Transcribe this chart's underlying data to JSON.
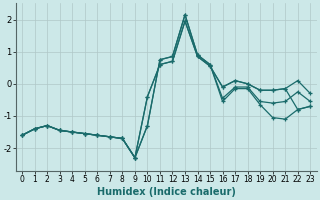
{
  "xlabel": "Humidex (Indice chaleur)",
  "bg_color": "#cce8e8",
  "grid_color": "#b0c8c8",
  "line_color": "#1a6b6b",
  "xlim": [
    -0.5,
    23.5
  ],
  "ylim": [
    -2.7,
    2.5
  ],
  "xticks": [
    0,
    1,
    2,
    3,
    4,
    5,
    6,
    7,
    8,
    9,
    10,
    11,
    12,
    13,
    14,
    15,
    16,
    17,
    18,
    19,
    20,
    21,
    22,
    23
  ],
  "yticks": [
    -2,
    -1,
    0,
    1,
    2
  ],
  "lines": [
    {
      "x": [
        0,
        1,
        2,
        3,
        4,
        5,
        6,
        7,
        8,
        9,
        10,
        11,
        12,
        13,
        14,
        15,
        16,
        17,
        18,
        19,
        20,
        21,
        22,
        23
      ],
      "y": [
        -1.6,
        -1.4,
        -1.3,
        -1.45,
        -1.5,
        -1.55,
        -1.6,
        -1.65,
        -1.7,
        -2.3,
        -1.3,
        0.75,
        0.85,
        2.15,
        0.9,
        0.6,
        -0.55,
        -0.15,
        -0.15,
        -0.65,
        -1.05,
        -1.1,
        -0.8,
        -0.7
      ]
    },
    {
      "x": [
        0,
        1,
        2,
        3,
        4,
        5,
        6,
        7,
        8,
        9,
        10,
        11,
        12,
        13,
        14,
        15,
        16,
        17,
        18,
        19,
        20,
        21,
        22,
        23
      ],
      "y": [
        -1.6,
        -1.4,
        -1.3,
        -1.45,
        -1.5,
        -1.55,
        -1.6,
        -1.65,
        -1.7,
        -2.3,
        -1.3,
        0.75,
        0.85,
        2.15,
        0.9,
        0.6,
        -0.45,
        -0.1,
        -0.1,
        -0.55,
        -0.6,
        -0.55,
        -0.25,
        -0.55
      ]
    },
    {
      "x": [
        0,
        1,
        2,
        3,
        4,
        5,
        6,
        7,
        8,
        9,
        10,
        11,
        12,
        13,
        14,
        15,
        16,
        17,
        18,
        19,
        20,
        21,
        22,
        23
      ],
      "y": [
        -1.6,
        -1.4,
        -1.3,
        -1.45,
        -1.5,
        -1.55,
        -1.6,
        -1.65,
        -1.7,
        -2.3,
        -0.4,
        0.6,
        0.7,
        1.95,
        0.85,
        0.55,
        -0.1,
        0.1,
        0.0,
        -0.2,
        -0.2,
        -0.15,
        -0.8,
        -0.7
      ]
    },
    {
      "x": [
        0,
        1,
        2,
        3,
        4,
        5,
        6,
        7,
        8,
        9,
        10,
        11,
        12,
        13,
        14,
        15,
        16,
        17,
        18,
        19,
        20,
        21,
        22,
        23
      ],
      "y": [
        -1.6,
        -1.4,
        -1.3,
        -1.45,
        -1.5,
        -1.55,
        -1.6,
        -1.65,
        -1.7,
        -2.3,
        -0.4,
        0.6,
        0.7,
        1.95,
        0.85,
        0.55,
        -0.1,
        0.1,
        0.0,
        -0.2,
        -0.2,
        -0.15,
        0.1,
        -0.3
      ]
    }
  ]
}
